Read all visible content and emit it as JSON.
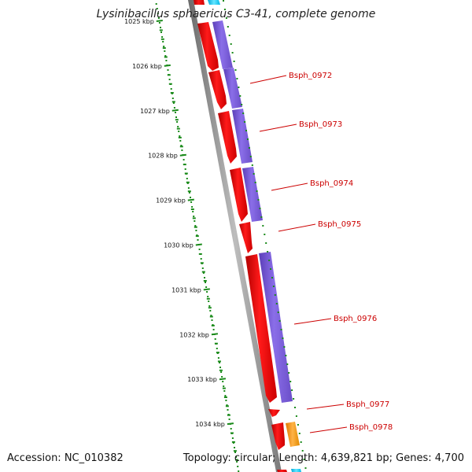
{
  "header": {
    "title": "Lysinibacillus sphaericus C3-41, complete genome"
  },
  "footer": {
    "accession": "Accession: NC_010382",
    "summary": "Topology: circular; Length: 4,639,821 bp; Genes: 4,700"
  },
  "ruler": {
    "color": "#1a8a1a",
    "ticks": [
      "1025 kbp",
      "1026 kbp",
      "1027 kbp",
      "1028 kbp",
      "1029 kbp",
      "1030 kbp",
      "1031 kbp",
      "1032 kbp",
      "1033 kbp",
      "1034 kbp"
    ]
  },
  "colors": {
    "cds": "#ff0000",
    "blast_hit": "#7a5cd6",
    "orange_feature": "#ff9900",
    "cyan_feature": "#00ccff",
    "backbone": "#888888",
    "label": "#cc0000"
  },
  "genes": [
    {
      "name": "Bsph_0972"
    },
    {
      "name": "Bsph_0973"
    },
    {
      "name": "Bsph_0974"
    },
    {
      "name": "Bsph_0975"
    },
    {
      "name": "Bsph_0976"
    },
    {
      "name": "Bsph_0977"
    },
    {
      "name": "Bsph_0978"
    }
  ]
}
